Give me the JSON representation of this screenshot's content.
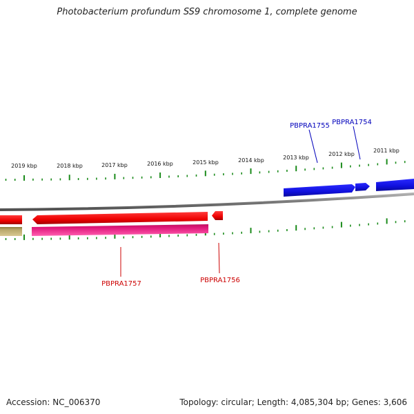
{
  "title": "Photobacterium profundum SS9 chromosome 1, complete genome",
  "footer": {
    "accession": "Accession: NC_006370",
    "summary": "Topology: circular; Length: 4,085,304 bp; Genes: 3,606"
  },
  "ruler": {
    "unit": "kbp",
    "labels": [
      "2019 kbp",
      "2018 kbp",
      "2017 kbp",
      "2016 kbp",
      "2015 kbp",
      "2014 kbp",
      "2013 kbp",
      "2012 kbp",
      "2011 kbp"
    ],
    "tick_color": "#1a8a1a"
  },
  "genes": [
    {
      "id": "PBPRA1755",
      "strand": "forward",
      "color": "#1010dd",
      "label_color": "#0000bb"
    },
    {
      "id": "PBPRA1754",
      "strand": "forward",
      "color": "#1010dd",
      "label_color": "#0000bb"
    },
    {
      "id": "PBPRA1757",
      "strand": "reverse",
      "color": "#ee0000",
      "label_color": "#cc0000"
    },
    {
      "id": "PBPRA1756",
      "strand": "reverse",
      "color": "#ee0000",
      "label_color": "#cc0000"
    }
  ],
  "colors": {
    "backbone": "#8a8a8a",
    "forward_gene": "#1010dd",
    "reverse_gene": "#ee0000",
    "reverse_feature": "#e0187a",
    "other_feature": "#b8a86a"
  }
}
